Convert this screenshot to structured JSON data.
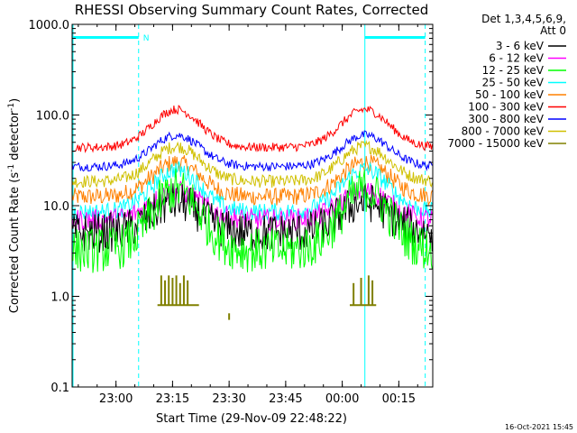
{
  "chart_data": {
    "type": "line",
    "title": "RHESSI Observing Summary Count Rates, Corrected",
    "xlabel": "Start Time (29-Nov-09 22:48:22)",
    "ylabel_main": "Corrected Count Rate (s",
    "ylabel_sup1": "-1",
    "ylabel_mid": " detector",
    "ylabel_sup2": "-1",
    "ylabel_end": ")",
    "yscale": "log",
    "ylim": [
      0.1,
      1000
    ],
    "xlim": [
      "22:48:22",
      "00:24:00"
    ],
    "x_ticks": [
      "23:00",
      "23:15",
      "23:30",
      "23:45",
      "00:00",
      "00:15"
    ],
    "y_ticks": [
      "0.1",
      "1.0",
      "10.0",
      "100.0",
      "1000.0"
    ],
    "legend_header_1": "Det 1,3,4,5,6,9,",
    "legend_header_2": "Att 0",
    "legend_placement": "right",
    "timestamp": "16-Oct-2021 15:45",
    "marker_label": "N",
    "peak_times": [
      "23:16",
      "00:06"
    ],
    "series": [
      {
        "name": "3 - 6 keV",
        "color": "#000000",
        "baseline": 5.0,
        "peak": 11.0,
        "noise": 0.22
      },
      {
        "name": "6 - 12 keV",
        "color": "#ff00ff",
        "baseline": 7.0,
        "peak": 14.5,
        "noise": 0.12
      },
      {
        "name": "12 - 25 keV",
        "color": "#00ff00",
        "baseline": 3.2,
        "peak": 15.0,
        "noise": 0.25
      },
      {
        "name": "25 - 50 keV",
        "color": "#00ffff",
        "baseline": 8.5,
        "peak": 25.0,
        "noise": 0.1
      },
      {
        "name": "50 - 100 keV",
        "color": "#ff8000",
        "baseline": 12.5,
        "peak": 30.0,
        "noise": 0.1
      },
      {
        "name": "100 - 300 keV",
        "color": "#ff0000",
        "baseline": 44.0,
        "peak": 115.0,
        "noise": 0.05
      },
      {
        "name": "300 - 800 keV",
        "color": "#0000ff",
        "baseline": 27.0,
        "peak": 60.0,
        "noise": 0.05
      },
      {
        "name": "800 - 7000 keV",
        "color": "#d0c000",
        "baseline": 18.5,
        "peak": 45.0,
        "noise": 0.07
      },
      {
        "name": "7000 - 15000 keV",
        "color": "#808000",
        "baseline": 0.8,
        "peak": 1.7,
        "noise": 0.0
      }
    ],
    "bars_7000_15000": [
      {
        "time": "23:12",
        "value": 1.7
      },
      {
        "time": "23:13",
        "value": 1.5
      },
      {
        "time": "23:14",
        "value": 1.7
      },
      {
        "time": "23:15",
        "value": 1.6
      },
      {
        "time": "23:16",
        "value": 1.7
      },
      {
        "time": "23:17",
        "value": 1.4
      },
      {
        "time": "23:18",
        "value": 1.7
      },
      {
        "time": "23:19",
        "value": 1.5
      },
      {
        "time": "00:03",
        "value": 1.4
      },
      {
        "time": "00:05",
        "value": 1.6
      },
      {
        "time": "00:07",
        "value": 1.7
      },
      {
        "time": "00:08",
        "value": 1.5
      }
    ],
    "saa_bar_color": "#00ffff"
  }
}
